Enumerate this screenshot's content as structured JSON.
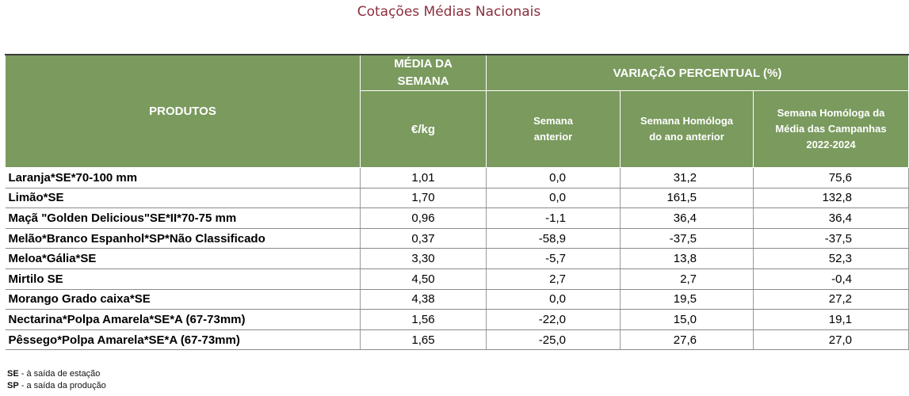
{
  "title": "Cotações Médias Nacionais",
  "header": {
    "produtos": "PRODUTOS",
    "media_line1": "MÉDIA DA",
    "media_line2": "SEMANA",
    "unit": "€/kg",
    "variacao": "VARIAÇÃO PERCENTUAL (%)",
    "col_sem_ant_1": "Semana",
    "col_sem_ant_2": "anterior",
    "col_hom_1": "Semana Homóloga",
    "col_hom_2": "do ano anterior",
    "col_camp_1": "Semana Homóloga da",
    "col_camp_2": "Média das Campanhas",
    "col_camp_3": "2022-2024"
  },
  "rows": [
    {
      "produto": "Laranja*SE*70-100 mm",
      "media": "1,01",
      "sem_ant": "0,0",
      "hom_ano": "31,2",
      "hom_camp": "75,6"
    },
    {
      "produto": "Limão*SE",
      "media": "1,70",
      "sem_ant": "0,0",
      "hom_ano": "161,5",
      "hom_camp": "132,8"
    },
    {
      "produto": "Maçã \"Golden Delicious\"SE*II*70-75 mm",
      "media": "0,96",
      "sem_ant": "-1,1",
      "hom_ano": "36,4",
      "hom_camp": "36,4"
    },
    {
      "produto": "Melão*Branco Espanhol*SP*Não Classificado",
      "media": "0,37",
      "sem_ant": "-58,9",
      "hom_ano": "-37,5",
      "hom_camp": "-37,5"
    },
    {
      "produto": "Meloa*Gália*SE",
      "media": "3,30",
      "sem_ant": "-5,7",
      "hom_ano": "13,8",
      "hom_camp": "52,3"
    },
    {
      "produto": "Mirtilo SE",
      "media": "4,50",
      "sem_ant": "2,7",
      "hom_ano": "2,7",
      "hom_camp": "-0,4"
    },
    {
      "produto": "Morango Grado caixa*SE",
      "media": "4,38",
      "sem_ant": "0,0",
      "hom_ano": "19,5",
      "hom_camp": "27,2"
    },
    {
      "produto": "Nectarina*Polpa Amarela*SE*A (67-73mm)",
      "media": "1,56",
      "sem_ant": "-22,0",
      "hom_ano": "15,0",
      "hom_camp": "19,1"
    },
    {
      "produto": "Pêssego*Polpa Amarela*SE*A (67-73mm)",
      "media": "1,65",
      "sem_ant": "-25,0",
      "hom_ano": "27,6",
      "hom_camp": "27,0"
    }
  ],
  "footnotes": [
    {
      "abbr": "SE",
      "text": " - à saída de estação"
    },
    {
      "abbr": "SP",
      "text": " - a saída da produção"
    }
  ]
}
